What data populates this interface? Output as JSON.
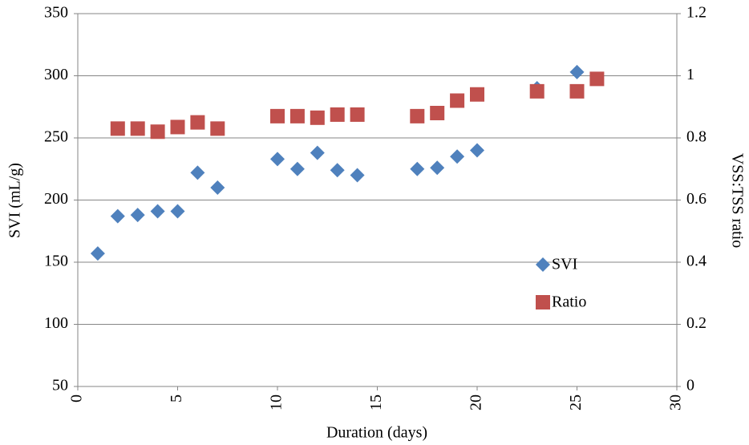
{
  "chart_data": {
    "type": "scatter",
    "xlabel": "Duration (days)",
    "ylabel": "SVI (mL/g)",
    "y2label": "VSS:TSS ratio",
    "xlim": [
      0,
      30
    ],
    "xticks": [
      0,
      5,
      10,
      15,
      20,
      25,
      30
    ],
    "ylim": [
      50,
      350
    ],
    "yticks": [
      50,
      100,
      150,
      200,
      250,
      300,
      350
    ],
    "y2lim": [
      0,
      1.2
    ],
    "y2ticks": [
      0,
      0.2,
      0.4,
      0.6,
      0.8,
      1,
      1.2
    ],
    "grid": true,
    "legend": "right",
    "series": [
      {
        "name": "SVI",
        "color": "#4f81bd",
        "marker": "diamond",
        "x": [
          1,
          2,
          3,
          4,
          5,
          6,
          7,
          10,
          11,
          12,
          13,
          14,
          17,
          18,
          19,
          20,
          23,
          25
        ],
        "values": [
          157,
          187,
          188,
          191,
          191,
          222,
          210,
          233,
          225,
          238,
          224,
          220,
          225,
          226,
          235,
          240,
          290,
          303
        ]
      },
      {
        "name": "Ratio",
        "color": "#c0504d",
        "marker": "square",
        "axis": "y2",
        "x": [
          2,
          3,
          4,
          5,
          6,
          7,
          10,
          11,
          12,
          13,
          14,
          17,
          18,
          19,
          20,
          23,
          25,
          26
        ],
        "values": [
          0.83,
          0.83,
          0.82,
          0.835,
          0.85,
          0.83,
          0.87,
          0.87,
          0.865,
          0.875,
          0.875,
          0.87,
          0.88,
          0.92,
          0.94,
          0.95,
          0.95,
          0.99
        ]
      }
    ]
  }
}
